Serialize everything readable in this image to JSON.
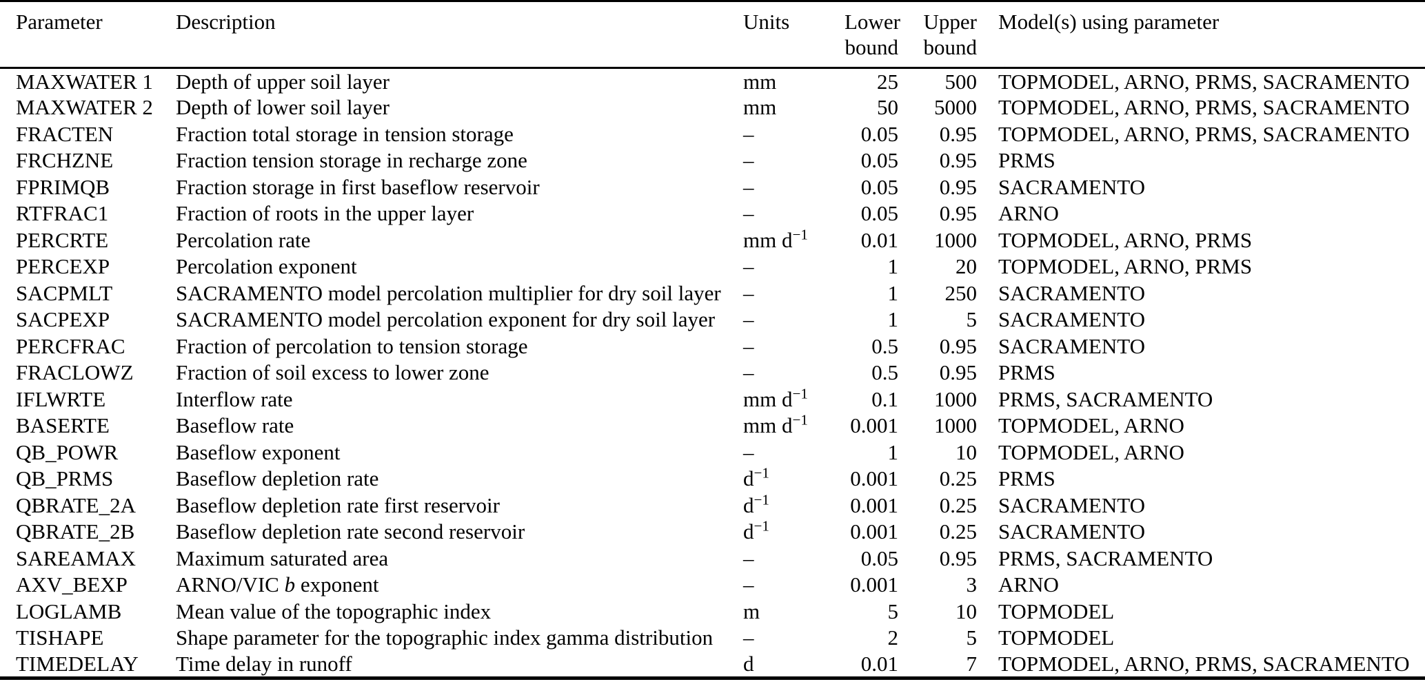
{
  "table": {
    "headers": [
      "Parameter",
      "Description",
      "Units",
      "Lower bound",
      "Upper bound",
      "Model(s) using parameter"
    ],
    "rows": [
      {
        "param": "MAXWATER 1",
        "description": "Depth of upper soil layer",
        "units": "mm",
        "lower": "25",
        "upper": "500",
        "models": "TOPMODEL, ARNO, PRMS, SACRAMENTO"
      },
      {
        "param": "MAXWATER 2",
        "description": "Depth of lower soil layer",
        "units": "mm",
        "lower": "50",
        "upper": "5000",
        "models": "TOPMODEL, ARNO, PRMS, SACRAMENTO"
      },
      {
        "param": "FRACTEN",
        "description": "Fraction total storage in tension storage",
        "units": "–",
        "lower": "0.05",
        "upper": "0.95",
        "models": "TOPMODEL, ARNO, PRMS, SACRAMENTO"
      },
      {
        "param": "FRCHZNE",
        "description": "Fraction tension storage in recharge zone",
        "units": "–",
        "lower": "0.05",
        "upper": "0.95",
        "models": "PRMS"
      },
      {
        "param": "FPRIMQB",
        "description": "Fraction storage in first baseflow reservoir",
        "units": "–",
        "lower": "0.05",
        "upper": "0.95",
        "models": "SACRAMENTO"
      },
      {
        "param": "RTFRAC1",
        "description": "Fraction of roots in the upper layer",
        "units": "–",
        "lower": "0.05",
        "upper": "0.95",
        "models": "ARNO"
      },
      {
        "param": "PERCRTE",
        "description": "Percolation rate",
        "units": "mm d^−1",
        "lower": "0.01",
        "upper": "1000",
        "models": "TOPMODEL, ARNO, PRMS"
      },
      {
        "param": "PERCEXP",
        "description": "Percolation exponent",
        "units": "–",
        "lower": "1",
        "upper": "20",
        "models": "TOPMODEL, ARNO, PRMS"
      },
      {
        "param": "SACPMLT",
        "description": "SACRAMENTO model percolation multiplier for dry soil layer",
        "units": "–",
        "lower": "1",
        "upper": "250",
        "models": "SACRAMENTO"
      },
      {
        "param": "SACPEXP",
        "description": "SACRAMENTO model percolation exponent for dry soil layer",
        "units": "–",
        "lower": "1",
        "upper": "5",
        "models": "SACRAMENTO"
      },
      {
        "param": "PERCFRAC",
        "description": "Fraction of percolation to tension storage",
        "units": "–",
        "lower": "0.5",
        "upper": "0.95",
        "models": "SACRAMENTO"
      },
      {
        "param": "FRACLOWZ",
        "description": "Fraction of soil excess to lower zone",
        "units": "–",
        "lower": "0.5",
        "upper": "0.95",
        "models": "PRMS"
      },
      {
        "param": "IFLWRTE",
        "description": "Interflow rate",
        "units": "mm d^−1",
        "lower": "0.1",
        "upper": "1000",
        "models": "PRMS, SACRAMENTO"
      },
      {
        "param": "BASERTE",
        "description": "Baseflow rate",
        "units": "mm d^−1",
        "lower": "0.001",
        "upper": "1000",
        "models": "TOPMODEL, ARNO"
      },
      {
        "param": "QB_POWR",
        "description": "Baseflow exponent",
        "units": "–",
        "lower": "1",
        "upper": "10",
        "models": "TOPMODEL, ARNO"
      },
      {
        "param": "QB_PRMS",
        "description": "Baseflow depletion rate",
        "units": "d^−1",
        "lower": "0.001",
        "upper": "0.25",
        "models": "PRMS"
      },
      {
        "param": "QBRATE_2A",
        "description": "Baseflow depletion rate first reservoir",
        "units": "d^−1",
        "lower": "0.001",
        "upper": "0.25",
        "models": "SACRAMENTO"
      },
      {
        "param": "QBRATE_2B",
        "description": "Baseflow depletion rate second reservoir",
        "units": "d^−1",
        "lower": "0.001",
        "upper": "0.25",
        "models": "SACRAMENTO"
      },
      {
        "param": "SAREAMAX",
        "description": "Maximum saturated area",
        "units": "–",
        "lower": "0.05",
        "upper": "0.95",
        "models": "PRMS, SACRAMENTO"
      },
      {
        "param": "AXV_BEXP",
        "description": "ARNO/VIC *b* exponent",
        "units": "–",
        "lower": "0.001",
        "upper": "3",
        "models": "ARNO"
      },
      {
        "param": "LOGLAMB",
        "description": "Mean value of the topographic index",
        "units": "m",
        "lower": "5",
        "upper": "10",
        "models": "TOPMODEL"
      },
      {
        "param": "TISHAPE",
        "description": "Shape parameter for the topographic index gamma distribution",
        "units": "–",
        "lower": "2",
        "upper": "5",
        "models": "TOPMODEL"
      },
      {
        "param": "TIMEDELAY",
        "description": "Time delay in runoff",
        "units": "d",
        "lower": "0.01",
        "upper": "7",
        "models": "TOPMODEL, ARNO, PRMS, SACRAMENTO"
      }
    ]
  }
}
